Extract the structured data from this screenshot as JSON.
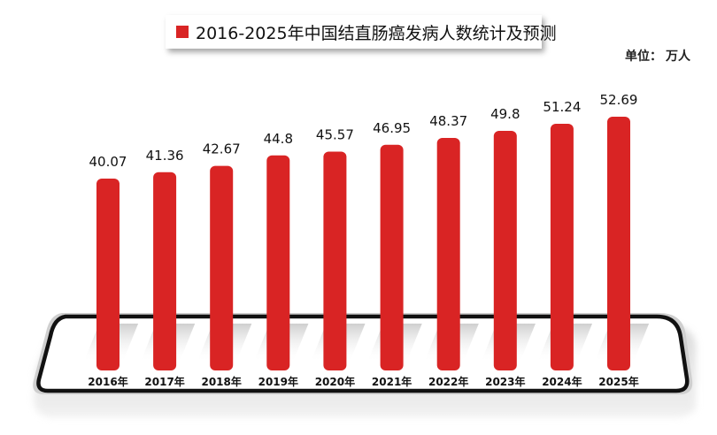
{
  "chart_data": {
    "type": "bar",
    "title": "2016-2025年中国结直肠癌发病人数统计及预测",
    "unit_label": "单位：",
    "unit_value": "万人",
    "categories": [
      "2016年",
      "2017年",
      "2018年",
      "2019年",
      "2020年",
      "2021年",
      "2022年",
      "2023年",
      "2024年",
      "2025年"
    ],
    "value_labels": [
      "40.07",
      "41.36",
      "42.67",
      "44.8",
      "45.57",
      "46.95",
      "48.37",
      "49.8",
      "51.24",
      "52.69"
    ],
    "series": [
      {
        "values": [
          40.07,
          41.36,
          42.67,
          44.8,
          45.57,
          46.95,
          48.37,
          49.8,
          51.24,
          52.69
        ]
      }
    ],
    "bar_color": "#d92424",
    "platform_fill": "#ffffff",
    "platform_border": "#111111",
    "grid": false,
    "legend": "top-center"
  }
}
